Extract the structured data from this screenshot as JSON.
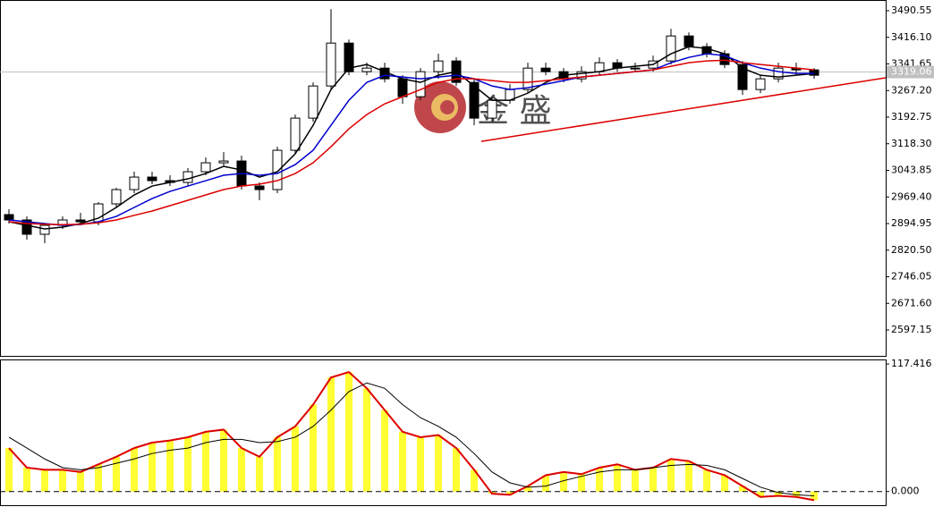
{
  "chart_data": [
    {
      "type": "candlestick",
      "watermark": "金 盛",
      "open": [
        2920,
        2905,
        2865,
        2890,
        2905,
        2900,
        2950,
        2990,
        3025,
        3015,
        3010,
        3040,
        3065,
        3070,
        3000,
        2990,
        3100,
        3190,
        3280,
        3400,
        3320,
        3330,
        3300,
        3250,
        3320,
        3350,
        3290,
        3190,
        3240,
        3270,
        3330,
        3320,
        3300,
        3320,
        3345,
        3330,
        3330,
        3350,
        3420,
        3390,
        3370,
        3340,
        3270,
        3300,
        3330,
        3325
      ],
      "high": [
        2935,
        2915,
        2895,
        2915,
        2925,
        2955,
        2995,
        3040,
        3040,
        3030,
        3050,
        3080,
        3095,
        3085,
        3010,
        3110,
        3200,
        3290,
        3495,
        3410,
        3345,
        3345,
        3310,
        3330,
        3370,
        3360,
        3300,
        3250,
        3285,
        3345,
        3345,
        3330,
        3335,
        3360,
        3355,
        3345,
        3365,
        3440,
        3430,
        3400,
        3380,
        3350,
        3310,
        3345,
        3345,
        3330
      ],
      "low": [
        2895,
        2850,
        2840,
        2880,
        2890,
        2890,
        2940,
        2980,
        3005,
        3000,
        3000,
        3030,
        3055,
        2990,
        2960,
        2980,
        3090,
        3180,
        3270,
        3310,
        3310,
        3290,
        3230,
        3240,
        3300,
        3280,
        3170,
        3180,
        3230,
        3260,
        3310,
        3290,
        3290,
        3310,
        3320,
        3320,
        3320,
        3340,
        3380,
        3360,
        3330,
        3255,
        3260,
        3290,
        3310,
        3300
      ],
      "close": [
        2905,
        2865,
        2890,
        2905,
        2900,
        2950,
        2990,
        3025,
        3015,
        3010,
        3040,
        3065,
        3070,
        3000,
        2990,
        3100,
        3190,
        3280,
        3400,
        3320,
        3330,
        3300,
        3250,
        3320,
        3350,
        3290,
        3190,
        3240,
        3270,
        3330,
        3320,
        3300,
        3320,
        3345,
        3330,
        3330,
        3350,
        3420,
        3390,
        3370,
        3340,
        3270,
        3300,
        3330,
        3325,
        3310
      ],
      "series": [
        {
          "color": "#000000",
          "values": [
            2900,
            2890,
            2880,
            2885,
            2895,
            2910,
            2940,
            2975,
            3000,
            3010,
            3020,
            3035,
            3055,
            3045,
            3025,
            3040,
            3090,
            3170,
            3270,
            3330,
            3340,
            3320,
            3300,
            3290,
            3310,
            3320,
            3280,
            3240,
            3240,
            3260,
            3290,
            3310,
            3315,
            3320,
            3330,
            3335,
            3340,
            3370,
            3390,
            3385,
            3370,
            3330,
            3310,
            3305,
            3310,
            3315
          ]
        },
        {
          "color": "#0000cc",
          "values": [
            2905,
            2900,
            2895,
            2890,
            2892,
            2900,
            2915,
            2940,
            2965,
            2985,
            3000,
            3015,
            3030,
            3035,
            3030,
            3035,
            3060,
            3100,
            3170,
            3240,
            3290,
            3310,
            3305,
            3300,
            3305,
            3310,
            3300,
            3280,
            3270,
            3275,
            3285,
            3295,
            3305,
            3310,
            3315,
            3320,
            3325,
            3345,
            3360,
            3370,
            3365,
            3345,
            3330,
            3320,
            3315,
            3315
          ]
        },
        {
          "color": "#dd0000",
          "values": [
            2900,
            2895,
            2893,
            2892,
            2893,
            2897,
            2905,
            2918,
            2930,
            2945,
            2960,
            2975,
            2990,
            3000,
            3005,
            3015,
            3035,
            3065,
            3110,
            3160,
            3200,
            3230,
            3250,
            3270,
            3290,
            3300,
            3300,
            3295,
            3290,
            3290,
            3295,
            3300,
            3305,
            3310,
            3315,
            3320,
            3325,
            3335,
            3345,
            3350,
            3352,
            3345,
            3340,
            3335,
            3330,
            3325
          ]
        }
      ],
      "trendline": {
        "x": [
          26.4,
          49
        ],
        "y": [
          3125,
          3303
        ],
        "color": "#dd0000"
      },
      "last_price": 3319.06,
      "xlim": [
        -0.5,
        49
      ],
      "ylim": [
        2524.6,
        3520.6
      ],
      "yticks": [
        3490.55,
        {
          "value": 3416.1,
          "label": "3416.10"
        },
        3341.65,
        {
          "value": 3267.2,
          "label": "3267.20"
        },
        3192.75,
        {
          "value": 3118.3,
          "label": "3118.30"
        },
        3043.85,
        {
          "value": 2969.4,
          "label": "2969.40"
        },
        2894.95,
        {
          "value": 2820.5,
          "label": "2820.50"
        },
        2746.05,
        {
          "value": 2671.6,
          "label": "2671.60"
        },
        2597.15
      ]
    },
    {
      "type": "bar",
      "series": [
        {
          "type": "bar",
          "color": "#ffff33",
          "outline": "#dd0000",
          "values": [
            40,
            22,
            20,
            20,
            18,
            25,
            32,
            40,
            45,
            47,
            50,
            55,
            57,
            40,
            32,
            50,
            60,
            80,
            105,
            110,
            95,
            75,
            55,
            50,
            52,
            40,
            20,
            -2,
            -3,
            5,
            15,
            18,
            16,
            22,
            25,
            20,
            22,
            30,
            28,
            20,
            15,
            5,
            -5,
            -4,
            -5,
            -8
          ]
        },
        {
          "type": "line",
          "color": "#000000",
          "values": [
            50,
            40,
            30,
            22,
            20,
            22,
            26,
            30,
            35,
            38,
            40,
            45,
            48,
            48,
            45,
            46,
            50,
            60,
            75,
            92,
            100,
            95,
            80,
            68,
            60,
            50,
            35,
            18,
            8,
            4,
            5,
            10,
            14,
            18,
            20,
            20,
            22,
            24,
            25,
            24,
            20,
            12,
            4,
            -1,
            -3,
            -4
          ]
        }
      ],
      "xlim": [
        -0.5,
        49
      ],
      "ylim": [
        -12.6,
        121.6
      ],
      "yticks": [
        117.416,
        {
          "value": 0,
          "label": "0.000"
        }
      ]
    }
  ]
}
